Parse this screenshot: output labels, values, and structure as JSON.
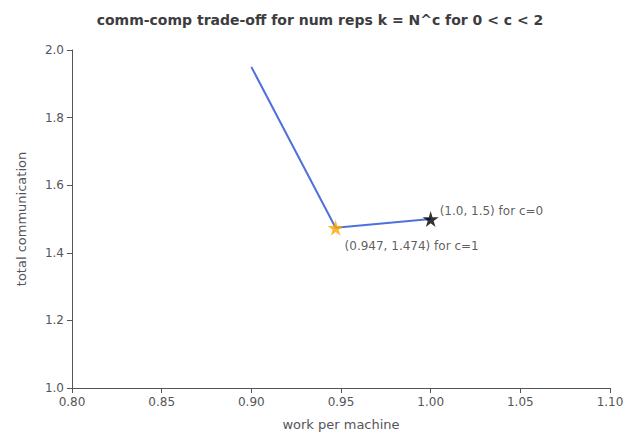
{
  "chart_data": {
    "type": "line",
    "title": "comm-comp trade-off for num reps k = N^c for 0 < c < 2",
    "xlabel": "work per machine",
    "ylabel": "total communication",
    "xlim": [
      0.8,
      1.1
    ],
    "ylim": [
      1.0,
      2.0
    ],
    "xticks": [
      {
        "value": 0.8,
        "label": "0.80"
      },
      {
        "value": 0.85,
        "label": "0.85"
      },
      {
        "value": 0.9,
        "label": "0.90"
      },
      {
        "value": 0.95,
        "label": "0.95"
      },
      {
        "value": 1.0,
        "label": "1.00"
      },
      {
        "value": 1.05,
        "label": "1.05"
      },
      {
        "value": 1.1,
        "label": "1.10"
      }
    ],
    "yticks": [
      {
        "value": 1.0,
        "label": "1.0"
      },
      {
        "value": 1.2,
        "label": "1.2"
      },
      {
        "value": 1.4,
        "label": "1.4"
      },
      {
        "value": 1.6,
        "label": "1.6"
      },
      {
        "value": 1.8,
        "label": "1.8"
      },
      {
        "value": 2.0,
        "label": "2.0"
      }
    ],
    "grid": false,
    "series": [
      {
        "type": "line",
        "x": [
          0.9,
          0.947,
          1.0
        ],
        "values": [
          1.95,
          1.474,
          1.5
        ]
      },
      {
        "type": "scatter",
        "marker": "star",
        "color": "orange",
        "x": [
          0.947
        ],
        "values": [
          1.474
        ]
      },
      {
        "type": "scatter",
        "marker": "star",
        "color": "black",
        "x": [
          1.0
        ],
        "values": [
          1.5
        ]
      }
    ],
    "annotations": [
      {
        "text": "(1.0, 1.5) for c=0",
        "x": 1.005,
        "y": 1.505
      },
      {
        "text": "(0.947, 1.474) for c=1",
        "x": 0.952,
        "y": 1.438
      }
    ]
  }
}
